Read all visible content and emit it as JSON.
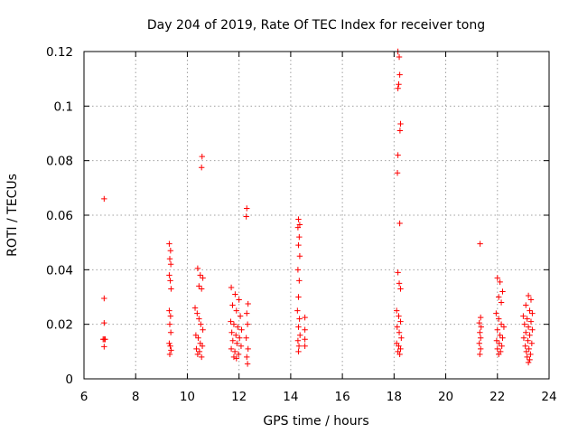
{
  "chart_data": {
    "type": "scatter",
    "title": "Day 204 of 2019, Rate Of TEC Index for receiver tong",
    "xlabel": "GPS time / hours",
    "ylabel": "ROTI / TECUs",
    "xlim": [
      6,
      24
    ],
    "ylim": [
      0,
      0.12
    ],
    "xticks": [
      6,
      8,
      10,
      12,
      14,
      16,
      18,
      20,
      22,
      24
    ],
    "xtick_labels": [
      "6",
      "8",
      "10",
      "12",
      "14",
      "16",
      "18",
      "20",
      "22",
      "24"
    ],
    "yticks": [
      0,
      0.02,
      0.04,
      0.06,
      0.08,
      0.1,
      0.12
    ],
    "ytick_labels": [
      "0",
      "0.02",
      "0.04",
      "0.06",
      "0.08",
      "0.1",
      "0.12"
    ],
    "grid": true,
    "marker": "+",
    "color": "#ff0000",
    "series": [
      {
        "name": "ROTI",
        "points": [
          [
            6.78,
            0.066
          ],
          [
            6.78,
            0.0295
          ],
          [
            6.78,
            0.0205
          ],
          [
            6.78,
            0.0145
          ],
          [
            6.78,
            0.0118
          ],
          [
            6.74,
            0.0145
          ],
          [
            6.82,
            0.0145
          ],
          [
            9.3,
            0.0495
          ],
          [
            9.35,
            0.047
          ],
          [
            9.32,
            0.044
          ],
          [
            9.36,
            0.042
          ],
          [
            9.3,
            0.038
          ],
          [
            9.34,
            0.036
          ],
          [
            9.37,
            0.033
          ],
          [
            9.3,
            0.025
          ],
          [
            9.35,
            0.023
          ],
          [
            9.32,
            0.02
          ],
          [
            9.36,
            0.017
          ],
          [
            9.3,
            0.013
          ],
          [
            9.34,
            0.012
          ],
          [
            9.37,
            0.0105
          ],
          [
            9.32,
            0.009
          ],
          [
            10.4,
            0.0405
          ],
          [
            10.5,
            0.038
          ],
          [
            10.6,
            0.037
          ],
          [
            10.45,
            0.034
          ],
          [
            10.55,
            0.033
          ],
          [
            10.3,
            0.026
          ],
          [
            10.38,
            0.024
          ],
          [
            10.45,
            0.022
          ],
          [
            10.52,
            0.02
          ],
          [
            10.6,
            0.018
          ],
          [
            10.33,
            0.016
          ],
          [
            10.42,
            0.015
          ],
          [
            10.5,
            0.013
          ],
          [
            10.58,
            0.012
          ],
          [
            10.35,
            0.011
          ],
          [
            10.47,
            0.01
          ],
          [
            10.4,
            0.009
          ],
          [
            10.55,
            0.008
          ],
          [
            10.57,
            0.0815
          ],
          [
            10.55,
            0.0775
          ],
          [
            11.7,
            0.0335
          ],
          [
            11.85,
            0.031
          ],
          [
            12.0,
            0.029
          ],
          [
            11.75,
            0.027
          ],
          [
            11.9,
            0.025
          ],
          [
            12.05,
            0.023
          ],
          [
            11.68,
            0.021
          ],
          [
            11.8,
            0.02
          ],
          [
            11.95,
            0.019
          ],
          [
            12.1,
            0.018
          ],
          [
            11.72,
            0.017
          ],
          [
            11.88,
            0.016
          ],
          [
            12.02,
            0.015
          ],
          [
            11.76,
            0.014
          ],
          [
            11.92,
            0.013
          ],
          [
            12.08,
            0.012
          ],
          [
            11.7,
            0.011
          ],
          [
            11.84,
            0.01
          ],
          [
            11.98,
            0.009
          ],
          [
            11.8,
            0.008
          ],
          [
            11.9,
            0.0075
          ],
          [
            12.3,
            0.0625
          ],
          [
            12.28,
            0.0595
          ],
          [
            12.35,
            0.0275
          ],
          [
            12.3,
            0.024
          ],
          [
            12.33,
            0.02
          ],
          [
            12.28,
            0.015
          ],
          [
            12.35,
            0.011
          ],
          [
            12.3,
            0.008
          ],
          [
            12.33,
            0.0055
          ],
          [
            14.3,
            0.0585
          ],
          [
            14.35,
            0.0565
          ],
          [
            14.28,
            0.0555
          ],
          [
            14.33,
            0.052
          ],
          [
            14.3,
            0.049
          ],
          [
            14.35,
            0.045
          ],
          [
            14.28,
            0.04
          ],
          [
            14.33,
            0.036
          ],
          [
            14.3,
            0.03
          ],
          [
            14.26,
            0.025
          ],
          [
            14.34,
            0.022
          ],
          [
            14.3,
            0.019
          ],
          [
            14.36,
            0.016
          ],
          [
            14.28,
            0.014
          ],
          [
            14.32,
            0.012
          ],
          [
            14.3,
            0.01
          ],
          [
            14.55,
            0.0225
          ],
          [
            14.55,
            0.018
          ],
          [
            14.55,
            0.0145
          ],
          [
            14.55,
            0.012
          ],
          [
            18.15,
            0.12
          ],
          [
            18.2,
            0.118
          ],
          [
            18.22,
            0.1115
          ],
          [
            18.18,
            0.108
          ],
          [
            18.15,
            0.1065
          ],
          [
            18.25,
            0.0935
          ],
          [
            18.23,
            0.091
          ],
          [
            18.15,
            0.082
          ],
          [
            18.13,
            0.0755
          ],
          [
            18.22,
            0.057
          ],
          [
            18.15,
            0.039
          ],
          [
            18.2,
            0.035
          ],
          [
            18.25,
            0.033
          ],
          [
            18.1,
            0.025
          ],
          [
            18.18,
            0.023
          ],
          [
            18.25,
            0.021
          ],
          [
            18.12,
            0.019
          ],
          [
            18.2,
            0.017
          ],
          [
            18.28,
            0.015
          ],
          [
            18.1,
            0.013
          ],
          [
            18.18,
            0.012
          ],
          [
            18.25,
            0.011
          ],
          [
            18.15,
            0.01
          ],
          [
            18.22,
            0.009
          ],
          [
            21.33,
            0.0495
          ],
          [
            21.35,
            0.0225
          ],
          [
            21.3,
            0.0205
          ],
          [
            21.37,
            0.019
          ],
          [
            21.32,
            0.017
          ],
          [
            21.35,
            0.015
          ],
          [
            21.3,
            0.013
          ],
          [
            21.35,
            0.011
          ],
          [
            21.32,
            0.009
          ],
          [
            22.0,
            0.037
          ],
          [
            22.1,
            0.0355
          ],
          [
            22.2,
            0.032
          ],
          [
            22.05,
            0.03
          ],
          [
            22.15,
            0.028
          ],
          [
            21.95,
            0.024
          ],
          [
            22.05,
            0.022
          ],
          [
            22.15,
            0.02
          ],
          [
            22.25,
            0.019
          ],
          [
            22.0,
            0.018
          ],
          [
            22.1,
            0.016
          ],
          [
            22.2,
            0.015
          ],
          [
            21.97,
            0.014
          ],
          [
            22.07,
            0.013
          ],
          [
            22.17,
            0.012
          ],
          [
            22.0,
            0.011
          ],
          [
            22.12,
            0.01
          ],
          [
            22.05,
            0.009
          ],
          [
            23.2,
            0.0305
          ],
          [
            23.3,
            0.029
          ],
          [
            23.1,
            0.027
          ],
          [
            23.25,
            0.025
          ],
          [
            23.35,
            0.024
          ],
          [
            23.0,
            0.023
          ],
          [
            23.15,
            0.022
          ],
          [
            23.3,
            0.021
          ],
          [
            23.05,
            0.02
          ],
          [
            23.2,
            0.019
          ],
          [
            23.35,
            0.018
          ],
          [
            23.1,
            0.017
          ],
          [
            23.25,
            0.016
          ],
          [
            23.02,
            0.015
          ],
          [
            23.18,
            0.014
          ],
          [
            23.33,
            0.013
          ],
          [
            23.08,
            0.012
          ],
          [
            23.22,
            0.011
          ],
          [
            23.12,
            0.01
          ],
          [
            23.28,
            0.009
          ],
          [
            23.15,
            0.008
          ],
          [
            23.25,
            0.007
          ],
          [
            23.2,
            0.006
          ]
        ]
      }
    ]
  }
}
